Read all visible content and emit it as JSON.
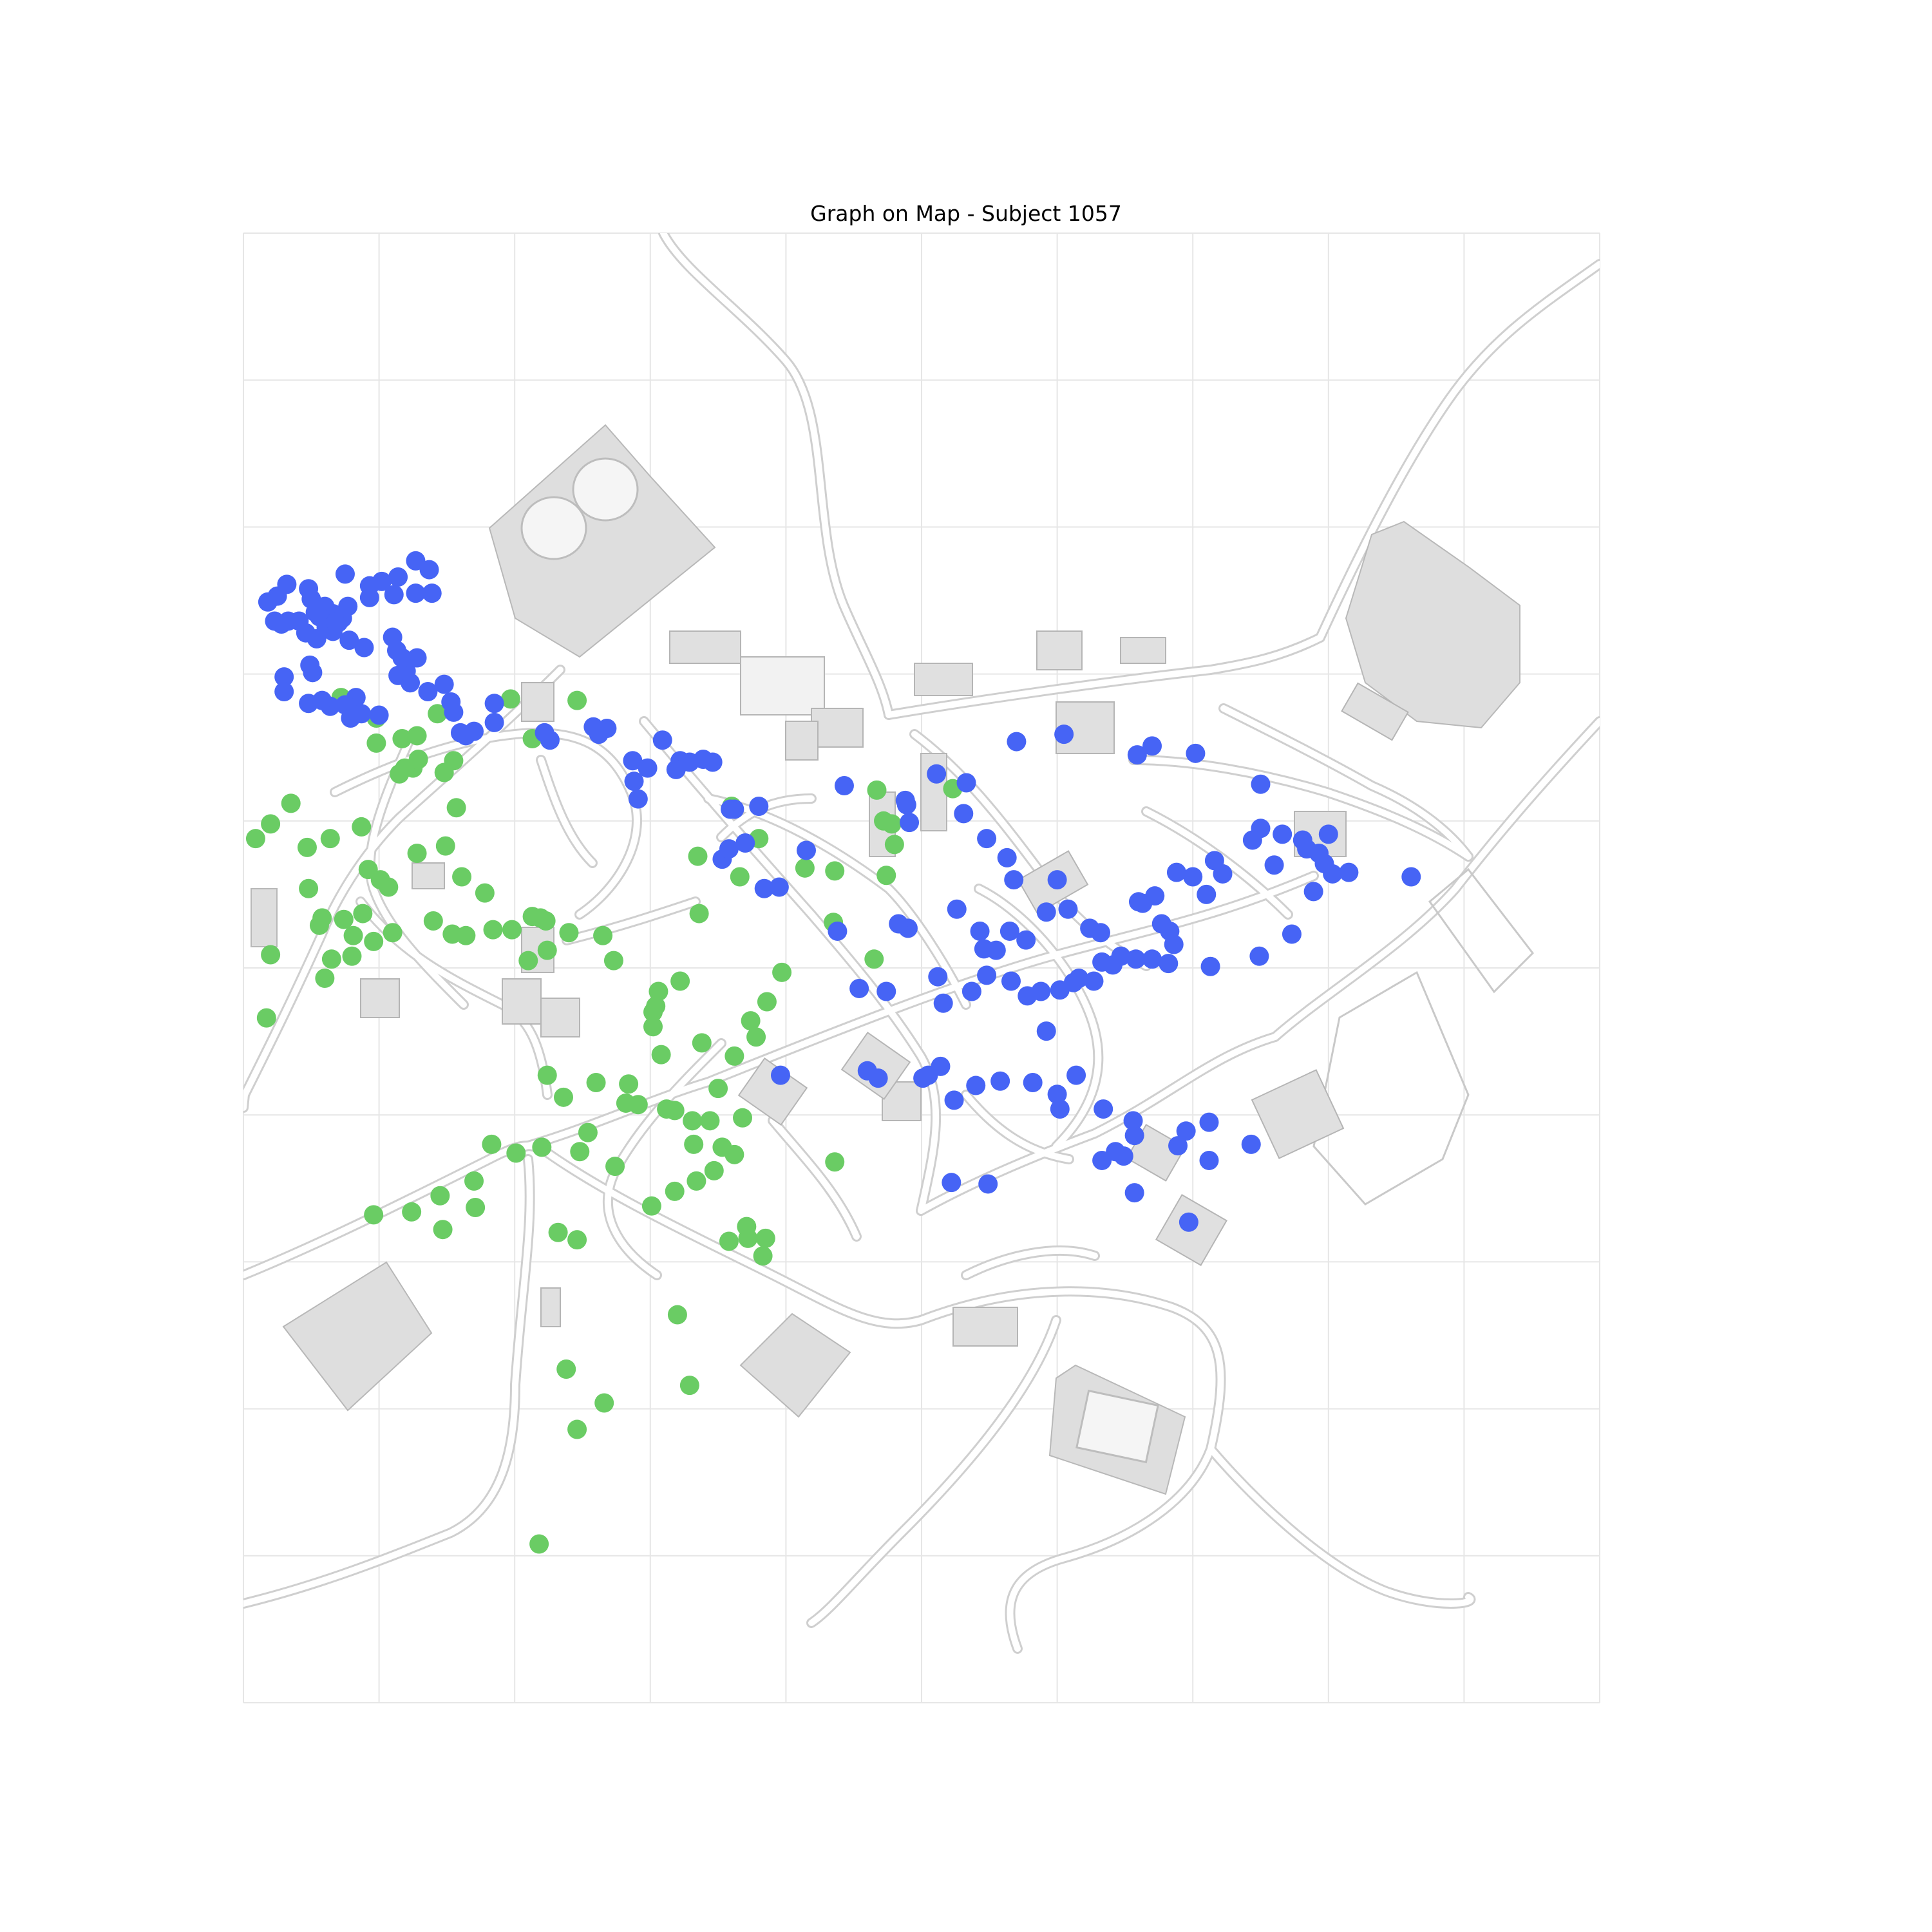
{
  "figure": {
    "title": "Graph on Map - Subject 1057"
  },
  "chart_data": {
    "type": "scatter",
    "title": "Graph on Map - Subject 1057",
    "xlabel": "",
    "ylabel": "",
    "grid": true,
    "background": "grayscale town map",
    "x_axis_lim": [
      0,
      1000
    ],
    "y_axis_lim": [
      0,
      1000
    ],
    "series": [
      {
        "color": "#6acc64",
        "points": [
          [
            246,
            814
          ],
          [
            17,
            534
          ],
          [
            218,
            892
          ],
          [
            238,
            773
          ],
          [
            320,
            736
          ],
          [
            266,
            796
          ],
          [
            329,
            784
          ],
          [
            147,
            678
          ],
          [
            96,
            668
          ],
          [
            124,
            666
          ],
          [
            145,
            655
          ],
          [
            171,
            663
          ],
          [
            170,
            645
          ],
          [
            246,
            685
          ],
          [
            232,
            680
          ],
          [
            183,
            620
          ],
          [
            201,
            626
          ],
          [
            220,
            622
          ],
          [
            248,
            625
          ],
          [
            274,
            635
          ],
          [
            301,
            662
          ],
          [
            334,
            645
          ],
          [
            332,
            620
          ],
          [
            362,
            627
          ],
          [
            368,
            602
          ],
          [
            350,
            582
          ],
          [
            362,
            560
          ],
          [
            378,
            547
          ],
          [
            374,
            536
          ],
          [
            386,
            523
          ],
          [
            397,
            503
          ],
          [
            435,
            469
          ],
          [
            465,
            494
          ],
          [
            474,
            437
          ],
          [
            436,
            434
          ],
          [
            478,
            402
          ],
          [
            472,
            400
          ],
          [
            467,
            379
          ],
          [
            523,
            378
          ],
          [
            480,
            416
          ],
          [
            414,
            432
          ],
          [
            366,
            438
          ],
          [
            380,
            412
          ],
          [
            335,
            424
          ],
          [
            360,
            390
          ],
          [
            336,
            463
          ],
          [
            322,
            509
          ],
          [
            302,
            530
          ],
          [
            338,
            551
          ],
          [
            308,
            559
          ],
          [
            284,
            579
          ],
          [
            260,
            578
          ],
          [
            224,
            573
          ],
          [
            236,
            588
          ],
          [
            254,
            612
          ],
          [
            210,
            495
          ],
          [
            178,
            449
          ],
          [
            161,
            438
          ],
          [
            157,
            391
          ],
          [
            149,
            417
          ],
          [
            128,
            422
          ],
          [
            125,
            364
          ],
          [
            115,
            368
          ],
          [
            87,
            404
          ],
          [
            64,
            412
          ],
          [
            92,
            433
          ],
          [
            101,
            440
          ],
          [
            107,
            445
          ],
          [
            88,
            463
          ],
          [
            110,
            476
          ],
          [
            96,
            482
          ],
          [
            60,
            507
          ],
          [
            65,
            494
          ],
          [
            80,
            492
          ],
          [
            81,
            478
          ],
          [
            74,
            467
          ],
          [
            58,
            466
          ],
          [
            47,
            418
          ],
          [
            48,
            446
          ],
          [
            56,
            471
          ],
          [
            20,
            491
          ],
          [
            35,
            388
          ],
          [
            20,
            402
          ],
          [
            9,
            412
          ],
          [
            72,
            316
          ],
          [
            98,
            330
          ],
          [
            98,
            347
          ],
          [
            117,
            344
          ],
          [
            119,
            364
          ],
          [
            148,
            367
          ],
          [
            143,
            327
          ],
          [
            197,
            317
          ],
          [
            246,
            318
          ],
          [
            213,
            344
          ],
          [
            155,
            359
          ],
          [
            129,
            358
          ],
          [
            128,
            342
          ],
          [
            140,
            468
          ],
          [
            154,
            477
          ],
          [
            164,
            478
          ],
          [
            184,
            474
          ],
          [
            198,
            474
          ],
          [
            213,
            465
          ],
          [
            219,
            466
          ],
          [
            224,
            488
          ],
          [
            223,
            468
          ],
          [
            240,
            476
          ],
          [
            265,
            478
          ],
          [
            273,
            495
          ],
          [
            306,
            516
          ],
          [
            304,
            526
          ],
          [
            302,
            540
          ],
          [
            282,
            592
          ],
          [
            291,
            593
          ],
          [
            312,
            596
          ],
          [
            318,
            597
          ],
          [
            331,
            604
          ],
          [
            344,
            604
          ],
          [
            353,
            622
          ],
          [
            318,
            652
          ],
          [
            371,
            676
          ],
          [
            372,
            684
          ],
          [
            383,
            696
          ],
          [
            385,
            684
          ],
          [
            436,
            632
          ],
          [
            347,
            638
          ],
          [
            358,
            686
          ]
        ]
      },
      {
        "color": "#4664f5",
        "points": [
          [
            570,
            346
          ],
          [
            605,
            341
          ],
          [
            659,
            355
          ],
          [
            670,
            349
          ],
          [
            702,
            354
          ],
          [
            750,
            375
          ],
          [
            750,
            405
          ],
          [
            800,
            409
          ],
          [
            815,
            435
          ],
          [
            803,
            436
          ],
          [
            861,
            438
          ],
          [
            760,
            430
          ],
          [
            722,
            436
          ],
          [
            710,
            450
          ],
          [
            660,
            455
          ],
          [
            616,
            507
          ],
          [
            592,
            543
          ],
          [
            540,
            580
          ],
          [
            524,
            590
          ],
          [
            602,
            596
          ],
          [
            656,
            604
          ],
          [
            689,
            621
          ],
          [
            712,
            631
          ],
          [
            743,
            620
          ],
          [
            712,
            605
          ],
          [
            695,
            611
          ],
          [
            657,
            614
          ],
          [
            614,
            573
          ],
          [
            600,
            586
          ],
          [
            582,
            578
          ],
          [
            501,
            575
          ],
          [
            468,
            575
          ],
          [
            460,
            570
          ],
          [
            396,
            573
          ],
          [
            558,
            577
          ],
          [
            634,
            596
          ],
          [
            697,
            673
          ],
          [
            657,
            653
          ],
          [
            649,
            628
          ],
          [
            643,
            625
          ],
          [
            537,
            516
          ],
          [
            516,
            524
          ],
          [
            505,
            573
          ],
          [
            514,
            567
          ],
          [
            549,
            647
          ],
          [
            522,
            646
          ],
          [
            633,
            631
          ],
          [
            526,
            460
          ],
          [
            490,
            473
          ],
          [
            483,
            470
          ],
          [
            474,
            516
          ],
          [
            438,
            475
          ],
          [
            454,
            514
          ],
          [
            512,
            506
          ],
          [
            548,
            505
          ],
          [
            566,
            509
          ],
          [
            578,
            519
          ],
          [
            588,
            516
          ],
          [
            602,
            515
          ],
          [
            612,
            510
          ],
          [
            627,
            509
          ],
          [
            633,
            496
          ],
          [
            641,
            498
          ],
          [
            647,
            492
          ],
          [
            658,
            494
          ],
          [
            670,
            494
          ],
          [
            686,
            484
          ],
          [
            683,
            475
          ],
          [
            677,
            470
          ],
          [
            663,
            456
          ],
          [
            672,
            451
          ],
          [
            688,
            435
          ],
          [
            700,
            438
          ],
          [
            716,
            427
          ],
          [
            744,
            413
          ],
          [
            766,
            409
          ],
          [
            781,
            413
          ],
          [
            784,
            419
          ],
          [
            793,
            422
          ],
          [
            797,
            429
          ],
          [
            789,
            448
          ],
          [
            749,
            492
          ],
          [
            773,
            477
          ],
          [
            713,
            499
          ],
          [
            682,
            497
          ],
          [
            632,
            476
          ],
          [
            624,
            473
          ],
          [
            592,
            462
          ],
          [
            608,
            460
          ],
          [
            600,
            440
          ],
          [
            577,
            481
          ],
          [
            565,
            475
          ],
          [
            543,
            475
          ],
          [
            546,
            487
          ],
          [
            555,
            488
          ],
          [
            568,
            440
          ],
          [
            563,
            425
          ],
          [
            548,
            412
          ],
          [
            531,
            395
          ],
          [
            533,
            374
          ],
          [
            511,
            368
          ],
          [
            488,
            386
          ],
          [
            489,
            389
          ],
          [
            491,
            401
          ],
          [
            443,
            376
          ],
          [
            415,
            420
          ],
          [
            384,
            446
          ],
          [
            395,
            445
          ],
          [
            353,
            426
          ],
          [
            358,
            419
          ],
          [
            370,
            415
          ],
          [
            359,
            392
          ],
          [
            362,
            392
          ],
          [
            380,
            390
          ],
          [
            346,
            360
          ],
          [
            339,
            358
          ],
          [
            322,
            359
          ],
          [
            298,
            364
          ],
          [
            287,
            359
          ],
          [
            288,
            373
          ],
          [
            291,
            385
          ],
          [
            319,
            365
          ],
          [
            329,
            360
          ],
          [
            309,
            345
          ],
          [
            262,
            341
          ],
          [
            268,
            337
          ],
          [
            258,
            336
          ],
          [
            226,
            345
          ],
          [
            222,
            340
          ],
          [
            185,
            333
          ],
          [
            185,
            320
          ],
          [
            170,
            339
          ],
          [
            160,
            340
          ],
          [
            164,
            342
          ],
          [
            155,
            326
          ],
          [
            153,
            319
          ],
          [
            148,
            307
          ],
          [
            136,
            312
          ],
          [
            123,
            306
          ],
          [
            100,
            328
          ],
          [
            83,
            316
          ],
          [
            80,
            323
          ],
          [
            64,
            322
          ],
          [
            51,
            299
          ],
          [
            49,
            294
          ],
          [
            30,
            302
          ],
          [
            30,
            312
          ],
          [
            48,
            320
          ],
          [
            58,
            318
          ],
          [
            75,
            321
          ],
          [
            79,
            330
          ],
          [
            87,
            327
          ],
          [
            114,
            301
          ],
          [
            120,
            298
          ],
          [
            128,
            289
          ],
          [
            110,
            275
          ],
          [
            113,
            284
          ],
          [
            117,
            289
          ],
          [
            89,
            282
          ],
          [
            78,
            277
          ],
          [
            70,
            265
          ],
          [
            66,
            259
          ],
          [
            60,
            254
          ],
          [
            50,
            249
          ],
          [
            53,
            258
          ],
          [
            56,
            261
          ],
          [
            61,
            268
          ],
          [
            66,
            271
          ],
          [
            73,
            262
          ],
          [
            77,
            254
          ],
          [
            93,
            248
          ],
          [
            111,
            246
          ],
          [
            127,
            245
          ],
          [
            139,
            245
          ],
          [
            137,
            229
          ],
          [
            127,
            223
          ],
          [
            114,
            234
          ],
          [
            102,
            237
          ],
          [
            93,
            240
          ],
          [
            75,
            232
          ],
          [
            48,
            242
          ],
          [
            32,
            239
          ],
          [
            25,
            247
          ],
          [
            18,
            251
          ],
          [
            23,
            264
          ],
          [
            28,
            266
          ],
          [
            33,
            264
          ],
          [
            41,
            264
          ],
          [
            46,
            272
          ],
          [
            54,
            276
          ],
          [
            68,
            265
          ]
        ]
      }
    ]
  }
}
